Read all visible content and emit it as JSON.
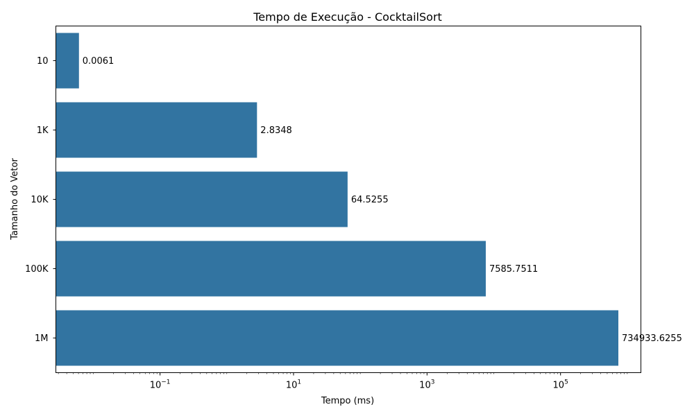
{
  "chart_data": {
    "type": "bar",
    "orientation": "horizontal",
    "title": "Tempo de Execução - CocktailSort",
    "xlabel": "Tempo (ms)",
    "ylabel": "Tamanho do Vetor",
    "x_scale": "log",
    "xlim": [
      0.00275,
      1600000
    ],
    "x_ticks": [
      {
        "value": 0.1,
        "base": "10",
        "exp": "−1"
      },
      {
        "value": 10,
        "base": "10",
        "exp": "1"
      },
      {
        "value": 1000,
        "base": "10",
        "exp": "3"
      },
      {
        "value": 100000,
        "base": "10",
        "exp": "5"
      }
    ],
    "categories": [
      "10",
      "1K",
      "10K",
      "100K",
      "1M"
    ],
    "values": [
      0.0061,
      2.8348,
      64.5255,
      7585.7511,
      734933.6255
    ],
    "data_labels": [
      "0.0061",
      "2.8348",
      "64.5255",
      "7585.7511",
      "734933.6255"
    ],
    "bar_color": "#3274a1",
    "grid": false,
    "legend": "none"
  }
}
